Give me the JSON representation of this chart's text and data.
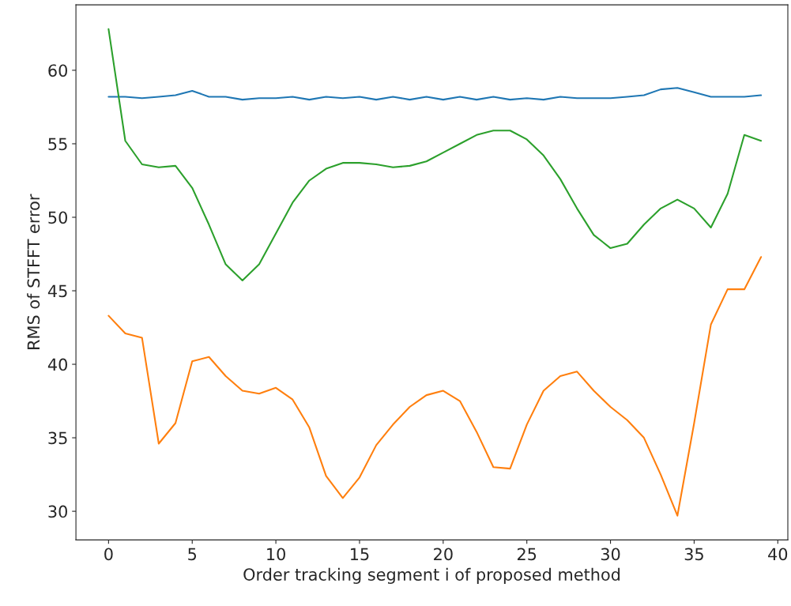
{
  "chart_data": {
    "type": "line",
    "xlabel": "Order tracking segment i of proposed method",
    "ylabel": "RMS of STFFT error",
    "x": [
      0,
      1,
      2,
      3,
      4,
      5,
      6,
      7,
      8,
      9,
      10,
      11,
      12,
      13,
      14,
      15,
      16,
      17,
      18,
      19,
      20,
      21,
      22,
      23,
      24,
      25,
      26,
      27,
      28,
      29,
      30,
      31,
      32,
      33,
      34,
      35,
      36,
      37,
      38,
      39
    ],
    "series": [
      {
        "color": "#1f77b4",
        "values": [
          58.2,
          58.2,
          58.1,
          58.2,
          58.3,
          58.6,
          58.2,
          58.2,
          58.0,
          58.1,
          58.1,
          58.2,
          58.0,
          58.2,
          58.1,
          58.2,
          58.0,
          58.2,
          58.0,
          58.2,
          58.0,
          58.2,
          58.0,
          58.2,
          58.0,
          58.1,
          58.0,
          58.2,
          58.1,
          58.1,
          58.1,
          58.2,
          58.3,
          58.7,
          58.8,
          58.5,
          58.2,
          58.2,
          58.2,
          58.3
        ]
      },
      {
        "color": "#ff7f0e",
        "values": [
          43.3,
          42.1,
          41.8,
          34.6,
          36.0,
          40.2,
          40.5,
          39.2,
          38.2,
          38.0,
          38.4,
          37.6,
          35.7,
          32.4,
          30.9,
          32.3,
          34.5,
          35.9,
          37.1,
          37.9,
          38.2,
          37.5,
          35.4,
          33.0,
          32.9,
          35.9,
          38.2,
          39.2,
          39.5,
          38.2,
          37.1,
          36.2,
          35.0,
          32.5,
          29.7,
          36.0,
          42.7,
          45.1,
          45.1,
          47.3
        ]
      },
      {
        "color": "#2ca02c",
        "values": [
          62.8,
          55.2,
          53.6,
          53.4,
          53.5,
          52.0,
          49.5,
          46.8,
          45.7,
          46.8,
          48.9,
          51.0,
          52.5,
          53.3,
          53.7,
          53.7,
          53.6,
          53.4,
          53.5,
          53.8,
          54.4,
          55.0,
          55.6,
          55.9,
          55.9,
          55.3,
          54.2,
          52.6,
          50.6,
          48.8,
          47.9,
          48.2,
          49.5,
          50.6,
          51.2,
          50.6,
          49.3,
          51.6,
          55.6,
          55.2
        ]
      }
    ],
    "xlim": [
      -1.95,
      40.6
    ],
    "ylim": [
      28.05,
      64.45
    ],
    "xticks": [
      0,
      5,
      10,
      15,
      20,
      25,
      30,
      35,
      40
    ],
    "yticks": [
      30,
      35,
      40,
      45,
      50,
      55,
      60
    ],
    "grid": false,
    "legend": false
  }
}
